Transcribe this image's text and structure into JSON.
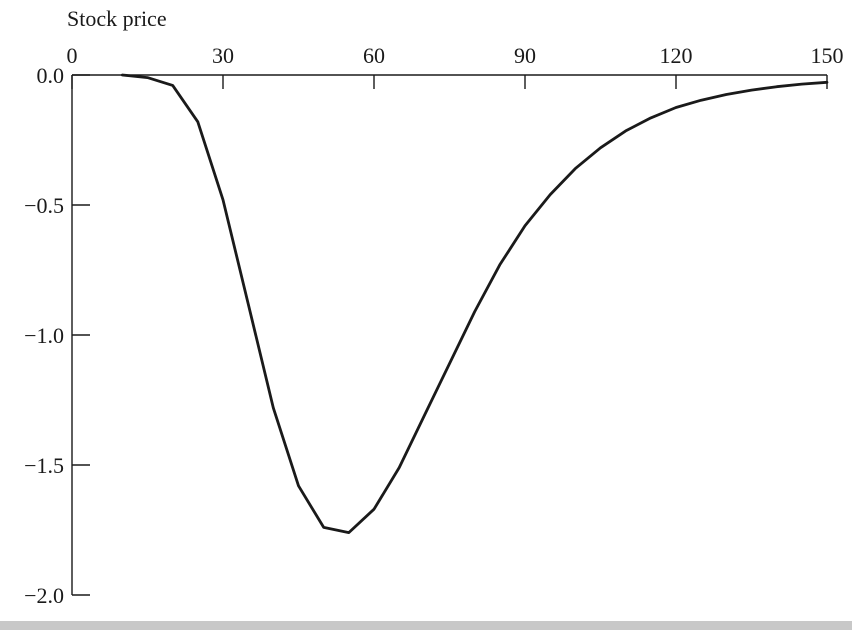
{
  "chart_data": {
    "type": "line",
    "title": "",
    "xlabel": "Stock price",
    "ylabel": "",
    "xlim": [
      0,
      150
    ],
    "ylim": [
      -2.0,
      0.0
    ],
    "x_ticks": [
      0,
      30,
      60,
      90,
      120,
      150
    ],
    "x_tick_labels": [
      "0",
      "30",
      "60",
      "90",
      "120",
      "150"
    ],
    "y_ticks": [
      0.0,
      -0.5,
      -1.0,
      -1.5,
      -2.0
    ],
    "y_tick_labels": [
      "0.0",
      "−0.5",
      "−1.0",
      "−1.5",
      "−2.0"
    ],
    "x_axis_position": "top",
    "grid": false,
    "legend": "none",
    "series": [
      {
        "color": "#1a1a1a",
        "x": [
          10,
          15,
          20,
          25,
          30,
          35,
          40,
          45,
          50,
          55,
          60,
          65,
          70,
          75,
          80,
          85,
          90,
          95,
          100,
          105,
          110,
          115,
          120,
          125,
          130,
          135,
          140,
          145,
          150
        ],
        "y": [
          0.0,
          -0.01,
          -0.04,
          -0.18,
          -0.48,
          -0.88,
          -1.28,
          -1.58,
          -1.74,
          -1.76,
          -1.67,
          -1.51,
          -1.31,
          -1.11,
          -0.91,
          -0.73,
          -0.58,
          -0.46,
          -0.36,
          -0.28,
          -0.215,
          -0.165,
          -0.125,
          -0.097,
          -0.075,
          -0.058,
          -0.045,
          -0.035,
          -0.028
        ]
      }
    ]
  }
}
